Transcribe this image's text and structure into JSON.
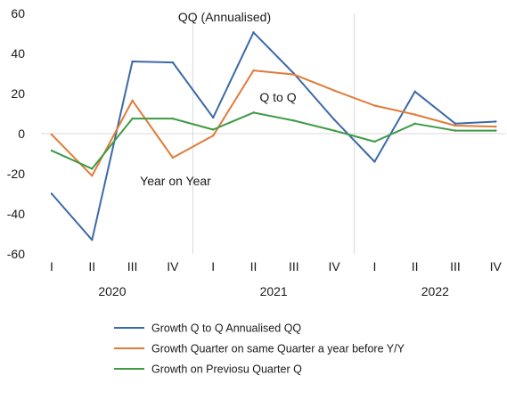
{
  "chart_data": {
    "type": "line",
    "title": "",
    "xlabel": "",
    "ylabel": "",
    "ylim": [
      -60,
      60
    ],
    "yticks": [
      60,
      40,
      20,
      0,
      -20,
      -40,
      -60
    ],
    "categories": [
      "I",
      "II",
      "III",
      "IV",
      "I",
      "II",
      "III",
      "IV",
      "I",
      "II",
      "III",
      "IV"
    ],
    "years": [
      {
        "label": "2020",
        "start": 0,
        "end": 3
      },
      {
        "label": "2021",
        "start": 4,
        "end": 7
      },
      {
        "label": "2022",
        "start": 8,
        "end": 11
      }
    ],
    "grid": "vertical year separators",
    "legend_position": "bottom",
    "series": [
      {
        "name": "Growth Q to Q Annualised QQ",
        "color": "#3c6aa8",
        "values": [
          -30,
          -53,
          36,
          35.5,
          8,
          50.5,
          30,
          7,
          -14,
          21,
          5,
          6
        ]
      },
      {
        "name": "Growth Quarter on same Quarter a year before Y/Y",
        "color": "#e07b39",
        "values": [
          -0.5,
          -21,
          16.5,
          -12,
          -1,
          31.5,
          29.5,
          21.5,
          14,
          9.5,
          4,
          3.5
        ]
      },
      {
        "name": "Growth on Previosu Quarter Q",
        "color": "#3f9a46",
        "values": [
          -8.5,
          -17.5,
          7.5,
          7.5,
          2,
          10.5,
          6.5,
          1.5,
          -4,
          5,
          1.5,
          1.5
        ]
      }
    ],
    "annotations": [
      {
        "text": "QQ (Annualised)",
        "anchor": "top-center"
      },
      {
        "text": "Q to Q",
        "anchor": "center"
      },
      {
        "text": "Year on Year",
        "anchor": "lower-left"
      }
    ]
  }
}
